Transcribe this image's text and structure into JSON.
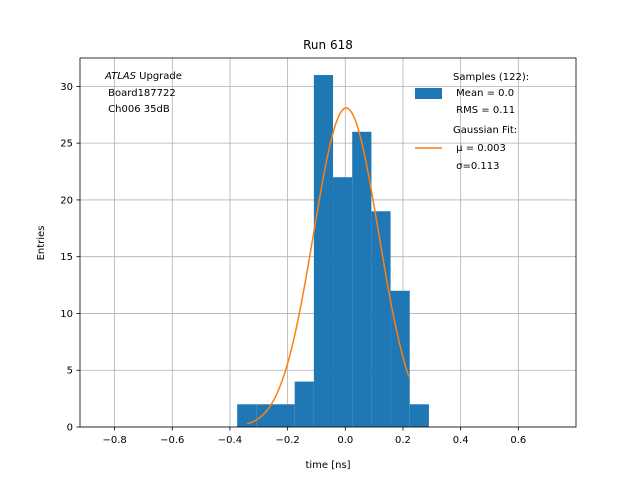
{
  "chart_data": {
    "type": "bar",
    "title": "Run 618",
    "xlabel": "time [ns]",
    "ylabel": "Entries",
    "xlim": [
      -0.92,
      0.8
    ],
    "ylim": [
      0,
      32.5
    ],
    "xticks": [
      -0.8,
      -0.6,
      -0.4,
      -0.2,
      0.0,
      0.2,
      0.4,
      0.6
    ],
    "xtick_labels": [
      "−0.8",
      "−0.6",
      "−0.4",
      "−0.2",
      "0.0",
      "0.2",
      "0.4",
      "0.6"
    ],
    "yticks": [
      0,
      5,
      10,
      15,
      20,
      25,
      30
    ],
    "ytick_labels": [
      "0",
      "5",
      "10",
      "15",
      "20",
      "25",
      "30"
    ],
    "grid": true,
    "legend_placement": "top-right",
    "annotation": {
      "line1_italic": "ATLAS",
      "line1_rest": " Upgrade",
      "line2": " Board187722",
      "line3": " Ch006 35dB"
    },
    "series": [
      {
        "kind": "histogram",
        "color": "#1f77b4",
        "legend_lines": [
          "Samples (122):",
          " Mean = 0.0",
          " RMS = 0.11"
        ],
        "bin_edges": [
          -0.375,
          -0.3085,
          -0.242,
          -0.1755,
          -0.109,
          -0.0425,
          0.024,
          0.0905,
          0.157,
          0.2235,
          0.29
        ],
        "counts": [
          2,
          2,
          2,
          4,
          31,
          22,
          26,
          19,
          12,
          2
        ]
      },
      {
        "kind": "gaussian-fit",
        "color": "#ff7f0e",
        "legend_lines": [
          "Gaussian Fit:",
          " μ = 0.003",
          " σ=0.113"
        ],
        "amplitude": 28.1,
        "mu": 0.003,
        "sigma": 0.113,
        "x_range": [
          -0.34,
          0.22
        ]
      }
    ]
  }
}
